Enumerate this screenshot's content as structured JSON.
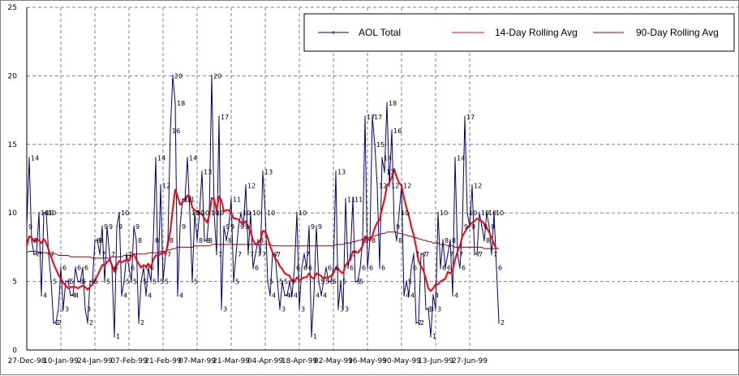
{
  "chart_data": {
    "type": "line",
    "title": "",
    "xlabel": "",
    "ylabel": "",
    "ylim": [
      0,
      25
    ],
    "y_ticks": [
      "0",
      "5",
      "10",
      "15",
      "20",
      "25"
    ],
    "x_start": "27-Dec-98",
    "x_tick_labels": [
      "27-Dec-98",
      "10-Jan-99",
      "24-Jan-99",
      "07-Feb-99",
      "21-Feb-99",
      "07-Mar-99",
      "21-Mar-99",
      "04-Apr-99",
      "18-Apr-99",
      "02-May-99",
      "16-May-99",
      "30-May-99",
      "13-Jun-99",
      "27-Jun-99"
    ],
    "grid": true,
    "legend_position": "top-right",
    "series": [
      {
        "name": "AOL Total",
        "color": "#000080",
        "values": [
          9,
          14,
          8,
          7,
          7,
          10,
          4,
          10,
          10,
          7,
          5,
          2,
          2,
          3,
          6,
          3,
          5,
          5,
          4,
          4,
          6,
          5,
          5,
          6,
          3,
          2,
          5,
          5,
          8,
          8,
          7,
          9,
          5,
          9,
          7,
          6,
          1,
          9,
          10,
          4,
          5,
          7,
          6,
          5,
          9,
          8,
          2,
          5,
          6,
          4,
          6,
          5,
          8,
          14,
          5,
          12,
          5,
          7,
          8,
          16,
          20,
          18,
          4,
          9,
          11,
          11,
          14,
          10,
          5,
          10,
          8,
          10,
          13,
          8,
          8,
          10,
          20,
          10,
          7,
          17,
          3,
          9,
          8,
          9,
          11,
          5,
          7,
          9,
          10,
          9,
          12,
          7,
          10,
          6,
          7,
          8,
          7,
          13,
          10,
          5,
          4,
          7,
          7,
          5,
          3,
          5,
          4,
          4,
          5,
          4,
          6,
          10,
          3,
          6,
          7,
          6,
          9,
          1,
          4,
          9,
          5,
          4,
          5,
          6,
          5,
          5,
          6,
          13,
          3,
          5,
          3,
          11,
          6,
          7,
          11,
          5,
          5,
          6,
          8,
          17,
          6,
          8,
          17,
          15,
          12,
          6,
          14,
          13,
          18,
          12,
          16,
          9,
          8,
          10,
          12,
          4,
          5,
          4,
          6,
          7,
          2,
          2,
          7,
          7,
          3,
          3,
          1,
          4,
          3,
          10,
          6,
          8,
          6,
          7,
          8,
          4,
          14,
          7,
          6,
          9,
          17,
          10,
          9,
          12,
          7,
          7,
          10,
          9,
          8,
          10,
          9,
          7,
          10,
          6,
          2
        ]
      },
      {
        "name": "14-Day Rolling Avg",
        "color": "#ff0000",
        "values": [
          7.6,
          8.3,
          8.2,
          7.9,
          8.1,
          8.0,
          7.8,
          8.1,
          7.8,
          7.3,
          6.8,
          6.3,
          5.9,
          5.5,
          5.2,
          4.9,
          4.7,
          4.5,
          4.6,
          4.6,
          4.6,
          4.5,
          4.6,
          4.7,
          4.6,
          4.4,
          4.6,
          4.8,
          5.1,
          5.4,
          5.8,
          6.2,
          6.2,
          6.4,
          6.6,
          6.2,
          5.7,
          6.2,
          6.5,
          6.4,
          6.5,
          6.6,
          6.5,
          6.9,
          7.0,
          6.6,
          6.3,
          6.0,
          6.2,
          6.1,
          6.3,
          6.0,
          6.6,
          6.9,
          6.9,
          7.0,
          7.2,
          7.0,
          7.7,
          8.7,
          10.3,
          11.7,
          11.2,
          10.6,
          10.8,
          10.9,
          11.3,
          11.2,
          10.4,
          10.2,
          10.1,
          10.0,
          9.9,
          9.6,
          9.3,
          9.8,
          11.1,
          11.0,
          10.2,
          11.2,
          10.9,
          10.1,
          10.2,
          10.2,
          10.0,
          9.6,
          9.6,
          9.5,
          9.3,
          9.2,
          9.4,
          9.0,
          8.6,
          8.0,
          7.7,
          7.8,
          8.0,
          8.7,
          8.6,
          8.2,
          7.6,
          7.1,
          6.7,
          6.5,
          6.1,
          5.9,
          5.6,
          5.5,
          5.4,
          5.0,
          5.0,
          5.3,
          5.1,
          5.2,
          5.3,
          5.3,
          5.6,
          5.3,
          5.2,
          5.6,
          5.5,
          5.4,
          5.2,
          5.3,
          5.3,
          5.4,
          5.6,
          6.0,
          5.9,
          5.7,
          5.6,
          6.2,
          6.4,
          6.6,
          7.2,
          7.2,
          7.1,
          7.3,
          7.6,
          8.3,
          8.1,
          8.0,
          8.3,
          8.9,
          9.3,
          9.5,
          10.3,
          11.0,
          12.0,
          12.2,
          12.6,
          13.2,
          12.6,
          12.2,
          12.0,
          11.1,
          10.4,
          9.8,
          9.0,
          8.4,
          7.5,
          6.5,
          6.1,
          5.8,
          5.2,
          4.5,
          4.3,
          4.5,
          4.8,
          4.8,
          5.0,
          5.1,
          5.2,
          5.7,
          5.6,
          5.8,
          6.6,
          7.2,
          7.6,
          8.3,
          8.6,
          8.9,
          9.1,
          9.3,
          9.4,
          9.6,
          9.5,
          9.4,
          9.2,
          8.9,
          8.6,
          8.2,
          7.7,
          7.4
        ]
      },
      {
        "name": "90-Day Rolling Avg",
        "color": "#a00000",
        "values": [
          7.1,
          7.2,
          7.2,
          7.2,
          7.2,
          7.1,
          7.1,
          7.1,
          7.1,
          7.0,
          7.0,
          7.0,
          7.0,
          6.9,
          6.9,
          6.9,
          6.9,
          6.9,
          6.8,
          6.8,
          6.8,
          6.8,
          6.8,
          6.8,
          6.8,
          6.8,
          6.8,
          6.7,
          6.7,
          6.7,
          6.7,
          6.7,
          6.7,
          6.7,
          6.7,
          6.8,
          6.8,
          6.8,
          6.8,
          6.8,
          6.9,
          6.9,
          6.9,
          6.9,
          7.0,
          7.0,
          7.0,
          7.0,
          7.0,
          7.0,
          7.1,
          7.1,
          7.1,
          7.1,
          7.1,
          7.2,
          7.2,
          7.2,
          7.3,
          7.3,
          7.4,
          7.4,
          7.5,
          7.5,
          7.5,
          7.5,
          7.5,
          7.5,
          7.5,
          7.6,
          7.6,
          7.6,
          7.6,
          7.6,
          7.6,
          7.6,
          7.7,
          7.7,
          7.7,
          7.7,
          7.7,
          7.7,
          7.7,
          7.7,
          7.7,
          7.7,
          7.7,
          7.7,
          7.7,
          7.7,
          7.7,
          7.7,
          7.7,
          7.7,
          7.7,
          7.7,
          7.7,
          7.7,
          7.7,
          7.7,
          7.7,
          7.6,
          7.6,
          7.6,
          7.6,
          7.6,
          7.6,
          7.6,
          7.6,
          7.6,
          7.6,
          7.6,
          7.6,
          7.6,
          7.6,
          7.6,
          7.6,
          7.6,
          7.6,
          7.6,
          7.6,
          7.6,
          7.6,
          7.6,
          7.6,
          7.6,
          7.6,
          7.7,
          7.7,
          7.7,
          7.7,
          7.8,
          7.8,
          7.8,
          7.9,
          7.9,
          8.0,
          8.0,
          8.1,
          8.1,
          8.2,
          8.2,
          8.3,
          8.3,
          8.4,
          8.4,
          8.5,
          8.5,
          8.6,
          8.6,
          8.6,
          8.6,
          8.6,
          8.5,
          8.5,
          8.4,
          8.4,
          8.3,
          8.3,
          8.2,
          8.2,
          8.1,
          8.1,
          8.0,
          8.0,
          7.9,
          7.9,
          7.8,
          7.8,
          7.8,
          7.7,
          7.7,
          7.7,
          7.6,
          7.6,
          7.6,
          7.5,
          7.5,
          7.5,
          7.5,
          7.5,
          7.5,
          7.5,
          7.5,
          7.5,
          7.5,
          7.5,
          7.5,
          7.4,
          7.4,
          7.4,
          7.4,
          7.4,
          7.4,
          7.4
        ]
      }
    ]
  }
}
